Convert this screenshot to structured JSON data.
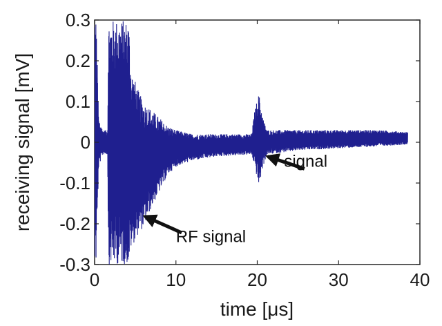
{
  "chart_data": {
    "type": "line",
    "title": "",
    "xlabel": "time [μs]",
    "ylabel": "receiving signal [mV]",
    "xlim": [
      0,
      40
    ],
    "ylim": [
      -0.3,
      0.3
    ],
    "x_ticks": [
      0,
      10,
      20,
      30,
      40
    ],
    "x_tick_labels": [
      "0",
      "10",
      "20",
      "30",
      "40"
    ],
    "y_ticks": [
      0.3,
      0.2,
      0.1,
      0,
      -0.1,
      -0.2,
      -0.3
    ],
    "y_tick_labels": [
      "0.3",
      "0.2",
      "0.1",
      "0",
      "-0.1",
      "-0.2",
      "-0.3"
    ],
    "grid": false,
    "legend": "none",
    "series": [
      {
        "color": "#1f1f8f",
        "x_range": [
          -0.3,
          38.5
        ],
        "envelope": [
          {
            "x": -0.3,
            "min": -0.3,
            "max": 0.3
          },
          {
            "x": 0.2,
            "min": -0.3,
            "max": 0.3
          },
          {
            "x": 0.5,
            "min": -0.06,
            "max": 0.06
          },
          {
            "x": 1.0,
            "min": -0.03,
            "max": 0.03
          },
          {
            "x": 1.6,
            "min": -0.03,
            "max": 0.03
          },
          {
            "x": 1.7,
            "min": -0.3,
            "max": 0.3
          },
          {
            "x": 4.2,
            "min": -0.3,
            "max": 0.3
          },
          {
            "x": 4.5,
            "min": -0.26,
            "max": 0.18
          },
          {
            "x": 5.5,
            "min": -0.22,
            "max": 0.12
          },
          {
            "x": 6.0,
            "min": -0.21,
            "max": 0.1
          },
          {
            "x": 7.0,
            "min": -0.16,
            "max": 0.08
          },
          {
            "x": 8.0,
            "min": -0.12,
            "max": 0.06
          },
          {
            "x": 9.0,
            "min": -0.08,
            "max": 0.04
          },
          {
            "x": 10.0,
            "min": -0.06,
            "max": 0.03
          },
          {
            "x": 12.0,
            "min": -0.045,
            "max": 0.02
          },
          {
            "x": 15.0,
            "min": -0.035,
            "max": 0.02
          },
          {
            "x": 19.3,
            "min": -0.03,
            "max": 0.02
          },
          {
            "x": 19.7,
            "min": -0.06,
            "max": 0.08
          },
          {
            "x": 20.2,
            "min": -0.11,
            "max": 0.12
          },
          {
            "x": 20.7,
            "min": -0.06,
            "max": 0.06
          },
          {
            "x": 21.2,
            "min": -0.03,
            "max": 0.03
          },
          {
            "x": 25.0,
            "min": -0.02,
            "max": 0.03
          },
          {
            "x": 30.0,
            "min": -0.015,
            "max": 0.03
          },
          {
            "x": 35.0,
            "min": -0.01,
            "max": 0.03
          },
          {
            "x": 38.5,
            "min": -0.005,
            "max": 0.025
          }
        ]
      }
    ],
    "annotations": [
      {
        "text": "signal",
        "x": 23.3,
        "y": -0.06,
        "arrow_from": [
          25.8,
          -0.065
        ],
        "arrow_to": [
          21.3,
          -0.035
        ]
      },
      {
        "text": "RF signal",
        "x": 10,
        "y": -0.245,
        "arrow_from": [
          10.7,
          -0.222
        ],
        "arrow_to": [
          6.2,
          -0.182
        ]
      }
    ]
  }
}
